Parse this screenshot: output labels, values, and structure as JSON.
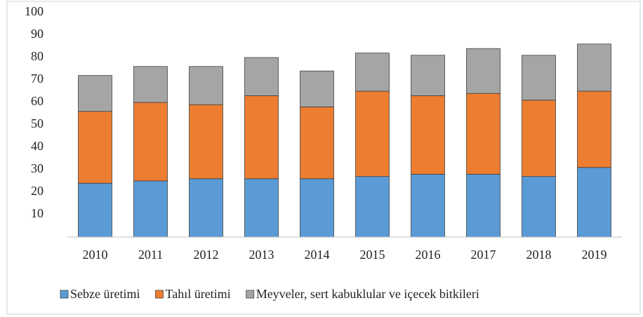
{
  "chart_data": {
    "type": "stacked_bar",
    "categories": [
      "2010",
      "2011",
      "2012",
      "2013",
      "2014",
      "2015",
      "2016",
      "2017",
      "2018",
      "2019"
    ],
    "series": [
      {
        "name": "Sebze üretimi",
        "color": "#5b9bd5",
        "values": [
          24,
          25,
          26,
          26,
          26,
          27,
          28,
          28,
          27,
          31
        ]
      },
      {
        "name": "Tahıl üretimi",
        "color": "#ed7d31",
        "values": [
          32,
          35,
          33,
          37,
          32,
          38,
          35,
          36,
          34,
          34
        ]
      },
      {
        "name": "Meyveler, sert kabuklular ve içecek bitkileri",
        "color": "#a5a5a5",
        "values": [
          16,
          16,
          17,
          17,
          16,
          17,
          18,
          20,
          20,
          21
        ]
      }
    ],
    "ylim": [
      0,
      100
    ],
    "yticks": [
      10,
      20,
      30,
      40,
      50,
      60,
      70,
      80,
      90,
      100
    ],
    "grid": false,
    "legend": "bottom"
  }
}
